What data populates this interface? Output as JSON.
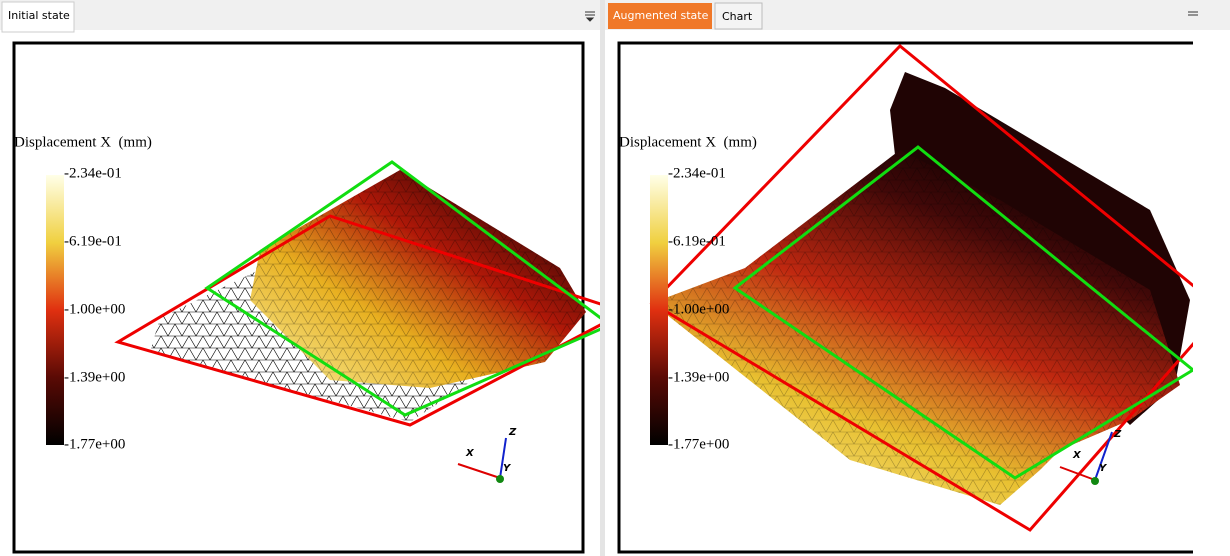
{
  "left_panel": {
    "tabs": [
      "Initial state"
    ],
    "legend": {
      "title": "Displacement X  (mm)",
      "labels": [
        "-2.34e-01",
        "-6.19e-01",
        "-1.00e+00",
        "-1.39e+00",
        "-1.77e+00"
      ]
    },
    "axes": {
      "x": "X",
      "y": "Y",
      "z": "Z"
    }
  },
  "right_panel": {
    "tabs": [
      "Augmented state",
      "Chart"
    ],
    "legend": {
      "title": "Displacement X  (mm)",
      "labels": [
        "-2.34e-01",
        "-6.19e-01",
        "-1.00e+00",
        "-1.39e+00",
        "-1.77e+00"
      ]
    },
    "axes": {
      "x": "X",
      "y": "Y",
      "z": "Z"
    }
  }
}
